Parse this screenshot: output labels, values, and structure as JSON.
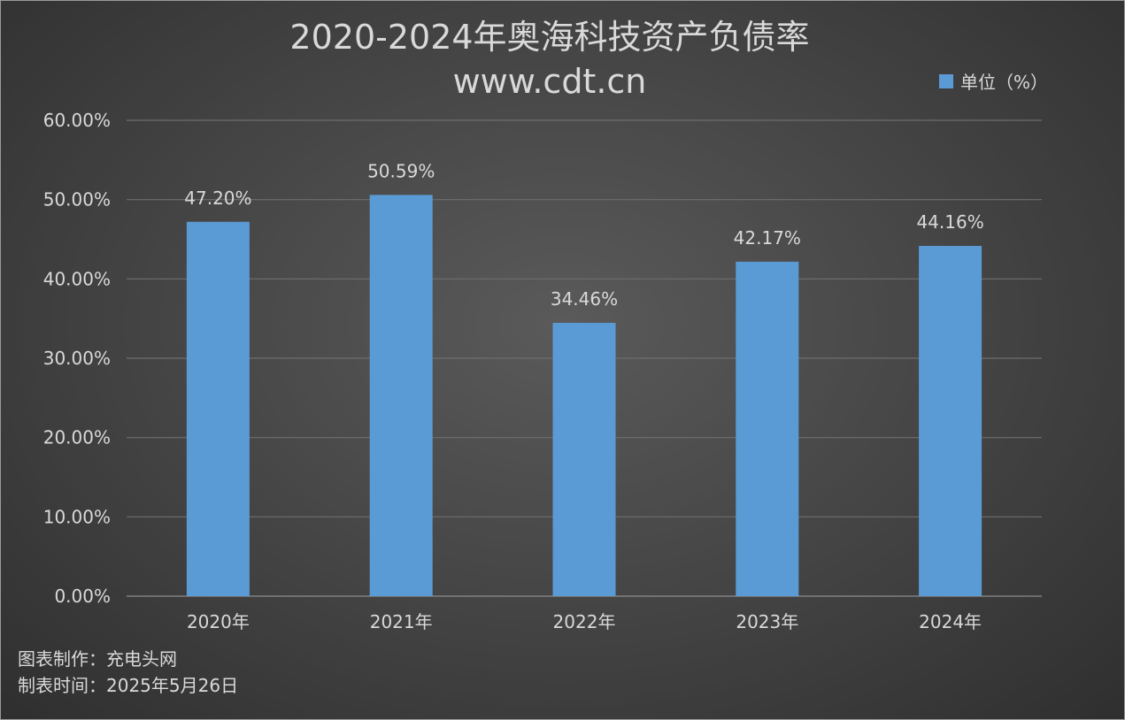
{
  "chart_data": {
    "type": "bar",
    "title": "2020-2024年奥海科技资产负债率",
    "subtitle": "www.cdt.cn",
    "categories": [
      "2020年",
      "2021年",
      "2022年",
      "2023年",
      "2024年"
    ],
    "series": [
      {
        "name": "单位（%）",
        "values": [
          47.2,
          50.59,
          34.46,
          42.17,
          44.16
        ],
        "color": "#5b9bd5"
      }
    ],
    "data_labels": [
      "47.20%",
      "50.59%",
      "34.46%",
      "42.17%",
      "44.16%"
    ],
    "yticks": [
      "0.00%",
      "10.00%",
      "20.00%",
      "30.00%",
      "40.00%",
      "50.00%",
      "60.00%"
    ],
    "ylim": [
      0,
      60
    ],
    "grid": true,
    "legend_position": "top-right"
  },
  "footer": {
    "line1": "图表制作：充电头网",
    "line2": "制表时间：2025年5月26日"
  }
}
